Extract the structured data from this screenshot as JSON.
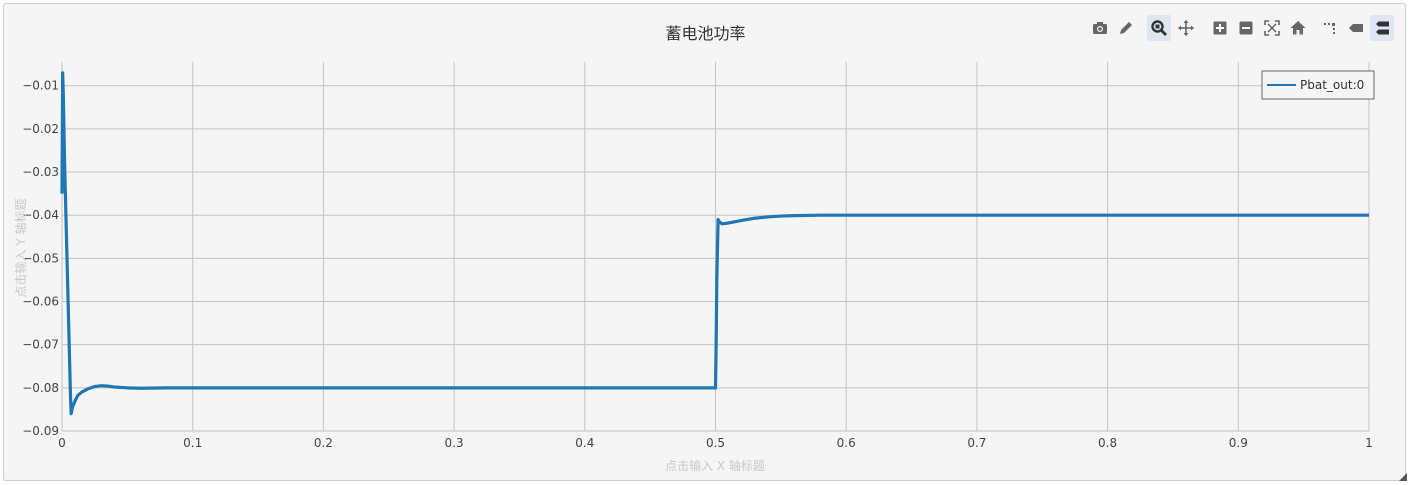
{
  "chart_data": {
    "type": "line",
    "title": "蓄电池功率",
    "xlabel": "点击输入 X 轴标题",
    "ylabel": "点击输入 Y 轴标题",
    "xlim": [
      0,
      1
    ],
    "ylim": [
      -0.09,
      -0.0045
    ],
    "x_ticks": [
      0,
      0.1,
      0.2,
      0.3,
      0.4,
      0.5,
      0.6,
      0.7,
      0.8,
      0.9,
      1
    ],
    "x_tick_labels": [
      "0",
      "0.1",
      "0.2",
      "0.3",
      "0.4",
      "0.5",
      "0.6",
      "0.7",
      "0.8",
      "0.9",
      "1"
    ],
    "y_ticks": [
      -0.01,
      -0.02,
      -0.03,
      -0.04,
      -0.05,
      -0.06,
      -0.07,
      -0.08,
      -0.09
    ],
    "y_tick_labels": [
      "−0.01",
      "−0.02",
      "−0.03",
      "−0.04",
      "−0.05",
      "−0.06",
      "−0.07",
      "−0.08",
      "−0.09"
    ],
    "grid": true,
    "legend_position": "top-right",
    "series": [
      {
        "name": "Pbat_out:0",
        "color": "#1f77b4",
        "x": [
          0,
          0.0005,
          0.001,
          0.0015,
          0.002,
          0.003,
          0.004,
          0.005,
          0.006,
          0.0065,
          0.007,
          0.008,
          0.01,
          0.012,
          0.015,
          0.02,
          0.025,
          0.03,
          0.035,
          0.04,
          0.05,
          0.06,
          0.08,
          0.1,
          0.15,
          0.2,
          0.25,
          0.3,
          0.35,
          0.4,
          0.45,
          0.499,
          0.5,
          0.5005,
          0.501,
          0.502,
          0.503,
          0.505,
          0.51,
          0.515,
          0.52,
          0.53,
          0.54,
          0.55,
          0.56,
          0.58,
          0.6,
          0.7,
          0.8,
          0.9,
          1.0
        ],
        "y": [
          -0.035,
          -0.007,
          -0.012,
          -0.02,
          -0.028,
          -0.04,
          -0.052,
          -0.064,
          -0.076,
          -0.082,
          -0.086,
          -0.0845,
          -0.083,
          -0.0818,
          -0.081,
          -0.0802,
          -0.0797,
          -0.0795,
          -0.0796,
          -0.0798,
          -0.08,
          -0.0801,
          -0.08,
          -0.08,
          -0.08,
          -0.08,
          -0.08,
          -0.08,
          -0.08,
          -0.08,
          -0.08,
          -0.08,
          -0.08,
          -0.07,
          -0.055,
          -0.041,
          -0.0415,
          -0.042,
          -0.0418,
          -0.0415,
          -0.0412,
          -0.0407,
          -0.0404,
          -0.0402,
          -0.0401,
          -0.04,
          -0.04,
          -0.04,
          -0.04,
          -0.04,
          -0.04
        ]
      }
    ]
  },
  "toolbar": {
    "icons": [
      "camera-icon",
      "pencil-icon",
      "zoom-icon",
      "pan-icon",
      "zoom-in-icon",
      "zoom-out-icon",
      "autoscale-icon",
      "home-icon",
      "spike-lines-icon",
      "hover-closest-icon",
      "hover-compare-icon"
    ],
    "active": [
      "zoom-icon",
      "hover-compare-icon"
    ],
    "active_color": "#dfe8f2"
  }
}
